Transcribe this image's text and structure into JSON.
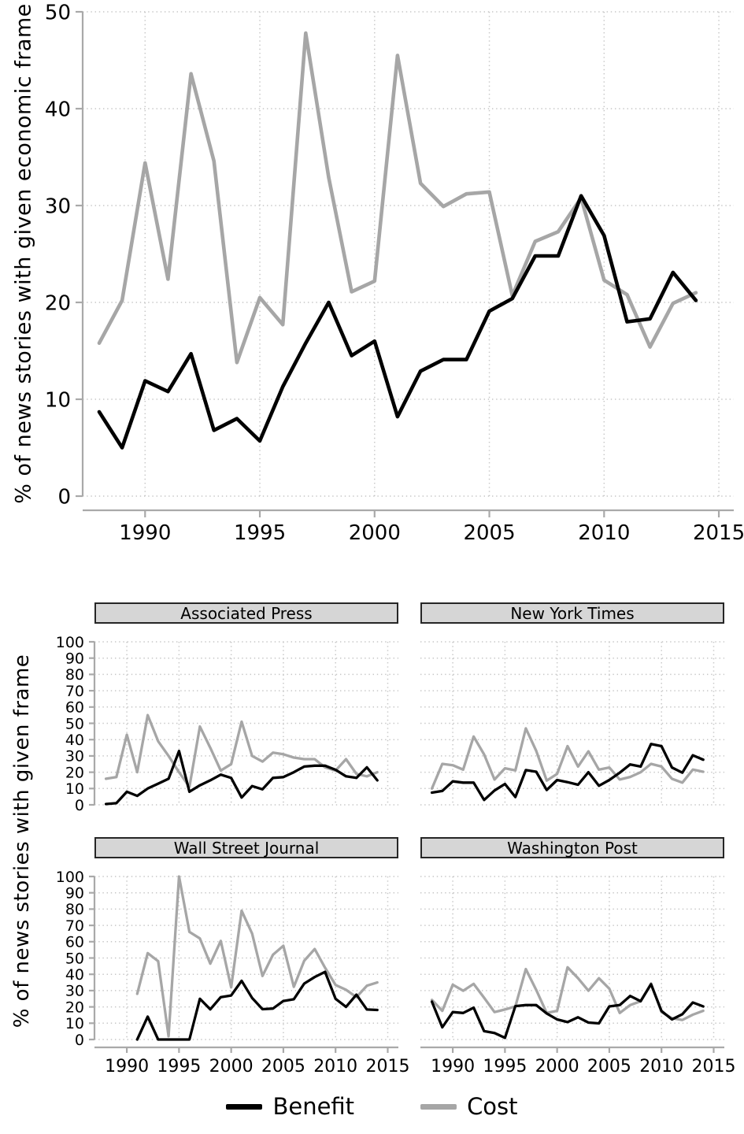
{
  "colors": {
    "benefit": "#000000",
    "cost": "#a6a6a6",
    "grid": "#c6c6c6",
    "axis": "#a9a9a9",
    "panel_header_bg": "#d6d6d6",
    "text": "#000000"
  },
  "axis_labels": {
    "top": "% of news stories with given economic frame",
    "bottom": "% of news stories with given frame"
  },
  "legend": {
    "benefit": "Benefit",
    "cost": "Cost"
  },
  "chart_data": {
    "overall": {
      "type": "line",
      "title": "",
      "xlabel": "",
      "ylabel": "% of news stories with given economic frame",
      "grid": "dotted",
      "xlim": [
        1987.28,
        2015.65
      ],
      "ylim": [
        0,
        50
      ],
      "xticks": [
        1990,
        1995,
        2000,
        2005,
        2010,
        2015
      ],
      "yticks": [
        0,
        10,
        20,
        30,
        40,
        50
      ],
      "x": [
        1988,
        1989,
        1990,
        1991,
        1992,
        1993,
        1994,
        1995,
        1996,
        1997,
        1998,
        1999,
        2000,
        2001,
        2002,
        2003,
        2004,
        2005,
        2006,
        2007,
        2008,
        2009,
        2010,
        2011,
        2012,
        2013,
        2014
      ],
      "series": [
        {
          "name": "Cost",
          "color": "cost",
          "values": [
            15.8,
            20.2,
            34.4,
            22.4,
            43.6,
            34.6,
            13.8,
            20.5,
            17.7,
            47.8,
            32.9,
            21.1,
            22.2,
            45.5,
            32.3,
            29.9,
            31.2,
            31.4,
            20.7,
            26.3,
            27.3,
            30.8,
            22.3,
            20.8,
            15.4,
            19.9,
            21.0
          ]
        },
        {
          "name": "Benefit",
          "color": "benefit",
          "values": [
            8.7,
            5.0,
            11.9,
            10.8,
            14.7,
            6.8,
            8.0,
            5.7,
            11.3,
            15.8,
            20.0,
            14.5,
            16.0,
            8.2,
            12.9,
            14.1,
            14.1,
            19.1,
            20.4,
            24.8,
            24.8,
            31.0,
            26.9,
            18.0,
            18.3,
            23.1,
            20.2
          ]
        }
      ]
    },
    "associated_press": {
      "type": "line",
      "title": "Associated Press",
      "xlim": [
        1986.9,
        2016.02
      ],
      "ylim": [
        0,
        100
      ],
      "xticks": [
        1990,
        1995,
        2000,
        2005,
        2010,
        2015
      ],
      "yticks": [
        0,
        10,
        20,
        30,
        40,
        50,
        60,
        70,
        80,
        90,
        100
      ],
      "x": [
        1988,
        1989,
        1990,
        1991,
        1992,
        1993,
        1994,
        1995,
        1996,
        1997,
        1998,
        1999,
        2000,
        2001,
        2002,
        2003,
        2004,
        2005,
        2006,
        2007,
        2008,
        2009,
        2010,
        2011,
        2012,
        2013,
        2014
      ],
      "series": [
        {
          "name": "Cost",
          "color": "cost",
          "values": [
            16,
            17,
            43,
            20,
            55,
            39,
            30,
            20,
            11,
            48,
            35,
            21,
            25,
            51,
            30,
            26.5,
            32,
            31,
            29,
            28,
            28,
            23,
            21,
            28,
            19,
            17.5,
            20
          ]
        },
        {
          "name": "Benefit",
          "color": "benefit",
          "values": [
            0.5,
            1,
            8,
            5.5,
            10,
            13,
            16,
            33,
            8,
            12,
            15,
            18.5,
            16.5,
            4.5,
            11.5,
            9.5,
            16.5,
            17,
            20,
            23.5,
            24,
            24,
            21.5,
            17.5,
            16.5,
            23,
            15
          ]
        }
      ]
    },
    "new_york_times": {
      "type": "line",
      "title": "New York Times",
      "xlim": [
        1986.9,
        2016.02
      ],
      "ylim": [
        0,
        100
      ],
      "xticks": [
        1990,
        1995,
        2000,
        2005,
        2010,
        2015
      ],
      "yticks": [
        0,
        10,
        20,
        30,
        40,
        50,
        60,
        70,
        80,
        90,
        100
      ],
      "x": [
        1988,
        1989,
        1990,
        1991,
        1992,
        1993,
        1994,
        1995,
        1996,
        1997,
        1998,
        1999,
        2000,
        2001,
        2002,
        2003,
        2004,
        2005,
        2006,
        2007,
        2008,
        2009,
        2010,
        2011,
        2012,
        2013,
        2014
      ],
      "series": [
        {
          "name": "Cost",
          "color": "cost",
          "values": [
            10,
            25.1,
            24.3,
            21.6,
            41.9,
            30.9,
            15.5,
            22.4,
            21.1,
            46.9,
            33.1,
            14.9,
            19,
            36,
            23.5,
            32.8,
            21.6,
            22.9,
            15.5,
            17.1,
            20,
            25.1,
            23.5,
            16,
            13.6,
            21.6,
            20.3
          ]
        },
        {
          "name": "Benefit",
          "color": "benefit",
          "values": [
            7.5,
            8.5,
            14.4,
            13.6,
            13.6,
            3,
            8.8,
            12.8,
            4.8,
            21.3,
            20.3,
            9.1,
            15.2,
            13.9,
            12.3,
            20,
            11.7,
            15.2,
            19.7,
            24.8,
            23.5,
            37.3,
            36,
            22.9,
            19.7,
            30.4,
            27.7
          ]
        }
      ]
    },
    "wall_street_journal": {
      "type": "line",
      "title": "Wall Street Journal",
      "xlim": [
        1986.9,
        2016.02
      ],
      "ylim": [
        0,
        100
      ],
      "xticks": [
        1990,
        1995,
        2000,
        2005,
        2010,
        2015
      ],
      "yticks": [
        0,
        10,
        20,
        30,
        40,
        50,
        60,
        70,
        80,
        90,
        100
      ],
      "x": [
        1991,
        1992,
        1993,
        1994,
        1995,
        1996,
        1997,
        1998,
        1999,
        2000,
        2001,
        2002,
        2003,
        2004,
        2005,
        2006,
        2007,
        2008,
        2009,
        2010,
        2011,
        2012,
        2013,
        2014
      ],
      "series": [
        {
          "name": "Cost",
          "color": "cost",
          "values": [
            28,
            53,
            48,
            2,
            100,
            66,
            62,
            46.5,
            60.5,
            32,
            79,
            65,
            39,
            52,
            57.5,
            32.3,
            48.3,
            55.5,
            44,
            33.5,
            30.5,
            26,
            33,
            35
          ]
        },
        {
          "name": "Benefit",
          "color": "benefit",
          "values": [
            0,
            14,
            0,
            0,
            0,
            0,
            25,
            18.5,
            26,
            27,
            36,
            25.5,
            18.6,
            19,
            23.6,
            24.7,
            34.3,
            38.3,
            41.5,
            25,
            20,
            27.5,
            18.4,
            18.1
          ]
        }
      ]
    },
    "washington_post": {
      "type": "line",
      "title": "Washington Post",
      "xlim": [
        1986.9,
        2016.02
      ],
      "ylim": [
        0,
        100
      ],
      "xticks": [
        1990,
        1995,
        2000,
        2005,
        2010,
        2015
      ],
      "yticks": [
        0,
        10,
        20,
        30,
        40,
        50,
        60,
        70,
        80,
        90,
        100
      ],
      "x": [
        1988,
        1989,
        1990,
        1991,
        1992,
        1993,
        1994,
        1995,
        1996,
        1997,
        1998,
        1999,
        2000,
        2001,
        2002,
        2003,
        2004,
        2005,
        2006,
        2007,
        2008,
        2009,
        2010,
        2011,
        2012,
        2013,
        2014
      ],
      "series": [
        {
          "name": "Cost",
          "color": "cost",
          "values": [
            24.3,
            17.6,
            33.6,
            29.9,
            34.1,
            25.6,
            16.8,
            18.4,
            20.3,
            43.2,
            30.4,
            16.3,
            17.6,
            44.3,
            37.6,
            29.9,
            37.6,
            31.2,
            16.3,
            21.1,
            23.5,
            34.4,
            16.8,
            13.1,
            12,
            15.2,
            17.6
          ]
        },
        {
          "name": "Benefit",
          "color": "benefit",
          "values": [
            23.2,
            7.5,
            16.8,
            16.3,
            19.5,
            5.1,
            4,
            1,
            20.5,
            21.1,
            21.1,
            16,
            12.3,
            10.7,
            13.6,
            10.4,
            9.9,
            20.3,
            21.1,
            26.7,
            23.5,
            33.9,
            17.5,
            12.3,
            15.5,
            22.7,
            20.3
          ]
        }
      ]
    }
  }
}
